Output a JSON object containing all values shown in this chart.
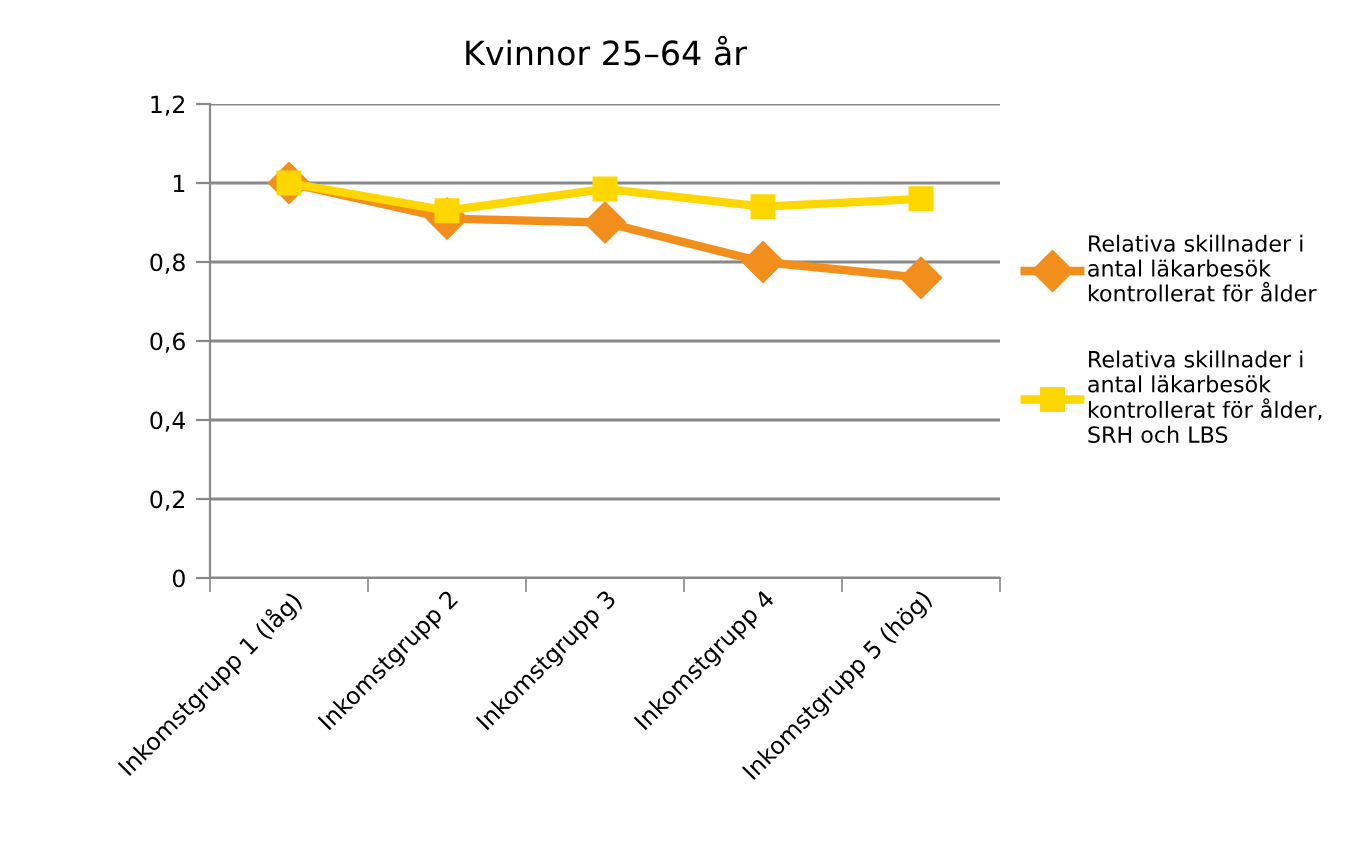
{
  "chart_data": {
    "type": "line",
    "title": "Kvinnor 25–64 år",
    "categories": [
      "Inkomstgrupp 1 (låg)",
      "Inkomstgrupp 2",
      "Inkomstgrupp 3",
      "Inkomstgrupp 4",
      "Inkomstgrupp 5 (hög)"
    ],
    "series": [
      {
        "name": "Relativa skillnader i antal läkarbesök kontrollerat för ålder",
        "color": "#f28e1c",
        "marker": "diamond",
        "values": [
          1.0,
          0.91,
          0.9,
          0.8,
          0.76
        ]
      },
      {
        "name": "Relativa skillnader i antal läkarbesök kontrollerat för ålder, SRH och LBS",
        "color": "#ffd700",
        "marker": "square",
        "values": [
          1.0,
          0.93,
          0.985,
          0.94,
          0.96
        ]
      }
    ],
    "ylim": [
      0,
      1.2
    ],
    "yticks": [
      0,
      {
        "value": 0.2,
        "label": "0,2"
      },
      {
        "value": 0.4,
        "label": "0,4"
      },
      {
        "value": 0.6,
        "label": "0,6"
      },
      {
        "value": 0.8,
        "label": "0,8"
      },
      1,
      {
        "value": 1.2,
        "label": "1,2"
      }
    ],
    "grid": "y",
    "legend": "right",
    "line_style": "solid"
  }
}
